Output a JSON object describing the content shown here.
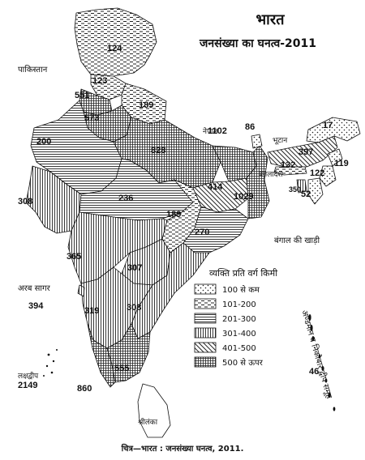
{
  "map": {
    "title": "भारत",
    "subtitle": "जनसंख्या का घनत्व-2011",
    "caption": "चित्र—भारत : जनसंख्या घनत्व, 2011.",
    "places": {
      "pakistan": "पाकिस्तान",
      "nepal": "नेपाल",
      "bhutan": "भूटान",
      "bangladesh": "बंगलादेश",
      "bay_of_bengal": "बंगाल की खाड़ी",
      "arabian_sea": "अरब सागर",
      "lakshadweep": "लक्षद्वीप",
      "sri_lanka": "श्रीलंका",
      "andaman": "अण्डमान व निकोबार द्वीप समूह"
    },
    "legend": {
      "title": "व्यक्ति प्रति वर्ग किमी",
      "classes": [
        {
          "label": "100 से कम",
          "pattern": "dots"
        },
        {
          "label": "101-200",
          "pattern": "dashes"
        },
        {
          "label": "201-300",
          "pattern": "horizontal"
        },
        {
          "label": "301-400",
          "pattern": "vertical"
        },
        {
          "label": "401-500",
          "pattern": "diagonal"
        },
        {
          "label": "500 से ऊपर",
          "pattern": "crosshatch"
        }
      ]
    },
    "densities": {
      "jammu_kashmir": "124",
      "himachal": "123",
      "punjab": "551",
      "haryana": "573",
      "uttarakhand": "189",
      "rajasthan": "200",
      "uttar_pradesh": "828",
      "bihar": "1102",
      "sikkim": "86",
      "arunachal": "17",
      "assam": "397",
      "meghalaya": "132",
      "nagaland": "119",
      "manipur": "122",
      "tripura": "350",
      "mizoram": "52",
      "west_bengal": "1029",
      "jharkhand": "414",
      "gujarat": "308",
      "madhya_pradesh": "236",
      "chhattisgarh": "189",
      "odisha": "270",
      "maharashtra": "365",
      "telangana": "307",
      "goa": "394",
      "karnataka": "319",
      "andhra": "308",
      "tamil_nadu": "555",
      "kerala": "860",
      "lakshadweep": "2149",
      "andaman": "46"
    }
  }
}
